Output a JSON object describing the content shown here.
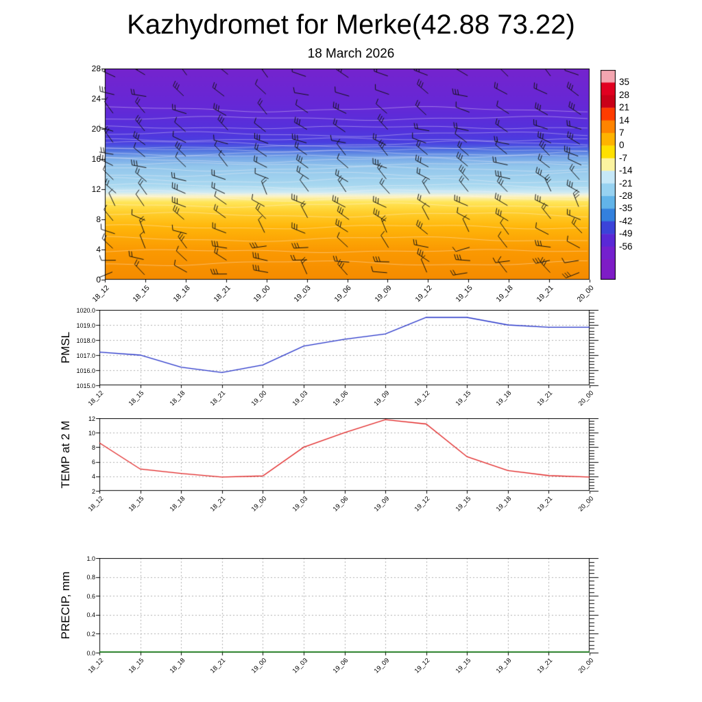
{
  "title": "Kazhydromet for Merke(42.88 73.22)",
  "subtitle": "18 March 2026",
  "time_labels": [
    "18_12",
    "18_15",
    "18_18",
    "18_21",
    "19_00",
    "19_03",
    "19_06",
    "19_09",
    "19_12",
    "19_15",
    "19_18",
    "19_21",
    "20_00"
  ],
  "chart_data": [
    {
      "name": "cross-section",
      "type": "heatmap",
      "title": "Time-height temperature cross-section with wind barbs and contour lines",
      "ylim": [
        0,
        28
      ],
      "y_ticks": [
        0,
        4,
        8,
        12,
        16,
        20,
        24,
        28
      ],
      "y_tick_labels": [
        "0",
        "4",
        "8",
        "12",
        "16",
        "20",
        "24",
        "28"
      ],
      "colorbar": {
        "tick_labels": [
          "35",
          "28",
          "21",
          "14",
          "7",
          "0",
          "-7",
          "-14",
          "-21",
          "-28",
          "-35",
          "-42",
          "-49",
          "-56"
        ],
        "segment_colors": [
          "#F4A6B0",
          "#E10020",
          "#C90018",
          "#FF3C00",
          "#FF8400",
          "#FFB300",
          "#FFE000",
          "#FBF3A0",
          "#C6E8F8",
          "#97D2F1",
          "#62B4E9",
          "#3380DD",
          "#3B43D9",
          "#5A28D6",
          "#7420CE"
        ],
        "extra_color": "#7E1CC6"
      },
      "fill_stops": [
        {
          "h": 28,
          "color": "#7524CE"
        },
        {
          "h": 23,
          "color": "#6528D6"
        },
        {
          "h": 20,
          "color": "#5531DC"
        },
        {
          "h": 18.2,
          "color": "#4A3FE0"
        },
        {
          "h": 17.2,
          "color": "#4E6FE0"
        },
        {
          "h": 16.2,
          "color": "#77A8E8"
        },
        {
          "h": 15,
          "color": "#93C6EC"
        },
        {
          "h": 12.5,
          "color": "#A8D8F0"
        },
        {
          "h": 11.6,
          "color": "#CFEAF4"
        },
        {
          "h": 11.1,
          "color": "#FBF4CC"
        },
        {
          "h": 10.3,
          "color": "#FFE65A"
        },
        {
          "h": 9,
          "color": "#FFD02E"
        },
        {
          "h": 7,
          "color": "#FFB60A"
        },
        {
          "h": 4,
          "color": "#FB9A02"
        },
        {
          "h": 0,
          "color": "#F58B00"
        }
      ],
      "contour_levels": [
        2.2,
        3.8,
        5.4,
        7,
        8.6,
        9.9,
        10.8,
        11.6,
        12.4,
        13.2,
        14,
        14.7,
        15.3,
        15.85,
        16.35,
        16.8,
        17.2,
        17.6,
        18.05,
        18.6,
        19.3,
        20.2,
        21.4,
        22.6
      ],
      "barb_levels": [
        0.8,
        2.5,
        4.3,
        6.2,
        8,
        9.8,
        11.5,
        13.2,
        15,
        16.5,
        18,
        19.8,
        22,
        24.5,
        27
      ],
      "contour_color": "rgba(255,248,250,0.55)",
      "barb_color": "#111111"
    },
    {
      "name": "pmsl",
      "type": "line",
      "label": "PMSL",
      "color": "#2230C8",
      "ylim": [
        1015.0,
        1020.0
      ],
      "y_ticks": [
        1015,
        1016,
        1017,
        1018,
        1019,
        1020
      ],
      "y_tick_labels": [
        "1015.0",
        "1016.0",
        "1017.0",
        "1018.0",
        "1019.0",
        "1020.0"
      ],
      "values": [
        1017.2,
        1017.0,
        1016.2,
        1015.85,
        1016.35,
        1017.6,
        1018.05,
        1018.4,
        1019.5,
        1019.5,
        1019.0,
        1018.85,
        1018.85
      ]
    },
    {
      "name": "temp2m",
      "type": "line",
      "label": "TEMP at 2 M",
      "color": "#E02020",
      "ylim": [
        2,
        12
      ],
      "y_ticks": [
        2,
        4,
        6,
        8,
        10,
        12
      ],
      "y_tick_labels": [
        "2",
        "4",
        "6",
        "8",
        "10",
        "12"
      ],
      "values": [
        8.6,
        5.0,
        4.4,
        3.9,
        4.05,
        8.0,
        10.0,
        11.8,
        11.2,
        6.7,
        4.8,
        4.1,
        3.9
      ]
    },
    {
      "name": "precip",
      "type": "line",
      "label": "PRECIP, mm",
      "color": "#007A00",
      "ylim": [
        0.0,
        1.0
      ],
      "y_ticks": [
        0,
        0.2,
        0.4,
        0.6,
        0.8,
        1.0
      ],
      "y_tick_labels": [
        "0.0",
        "0.2",
        "0.4",
        "0.6",
        "0.8",
        "1.0"
      ],
      "values": [
        0,
        0,
        0,
        0,
        0,
        0,
        0,
        0,
        0,
        0,
        0,
        0,
        0
      ]
    }
  ]
}
